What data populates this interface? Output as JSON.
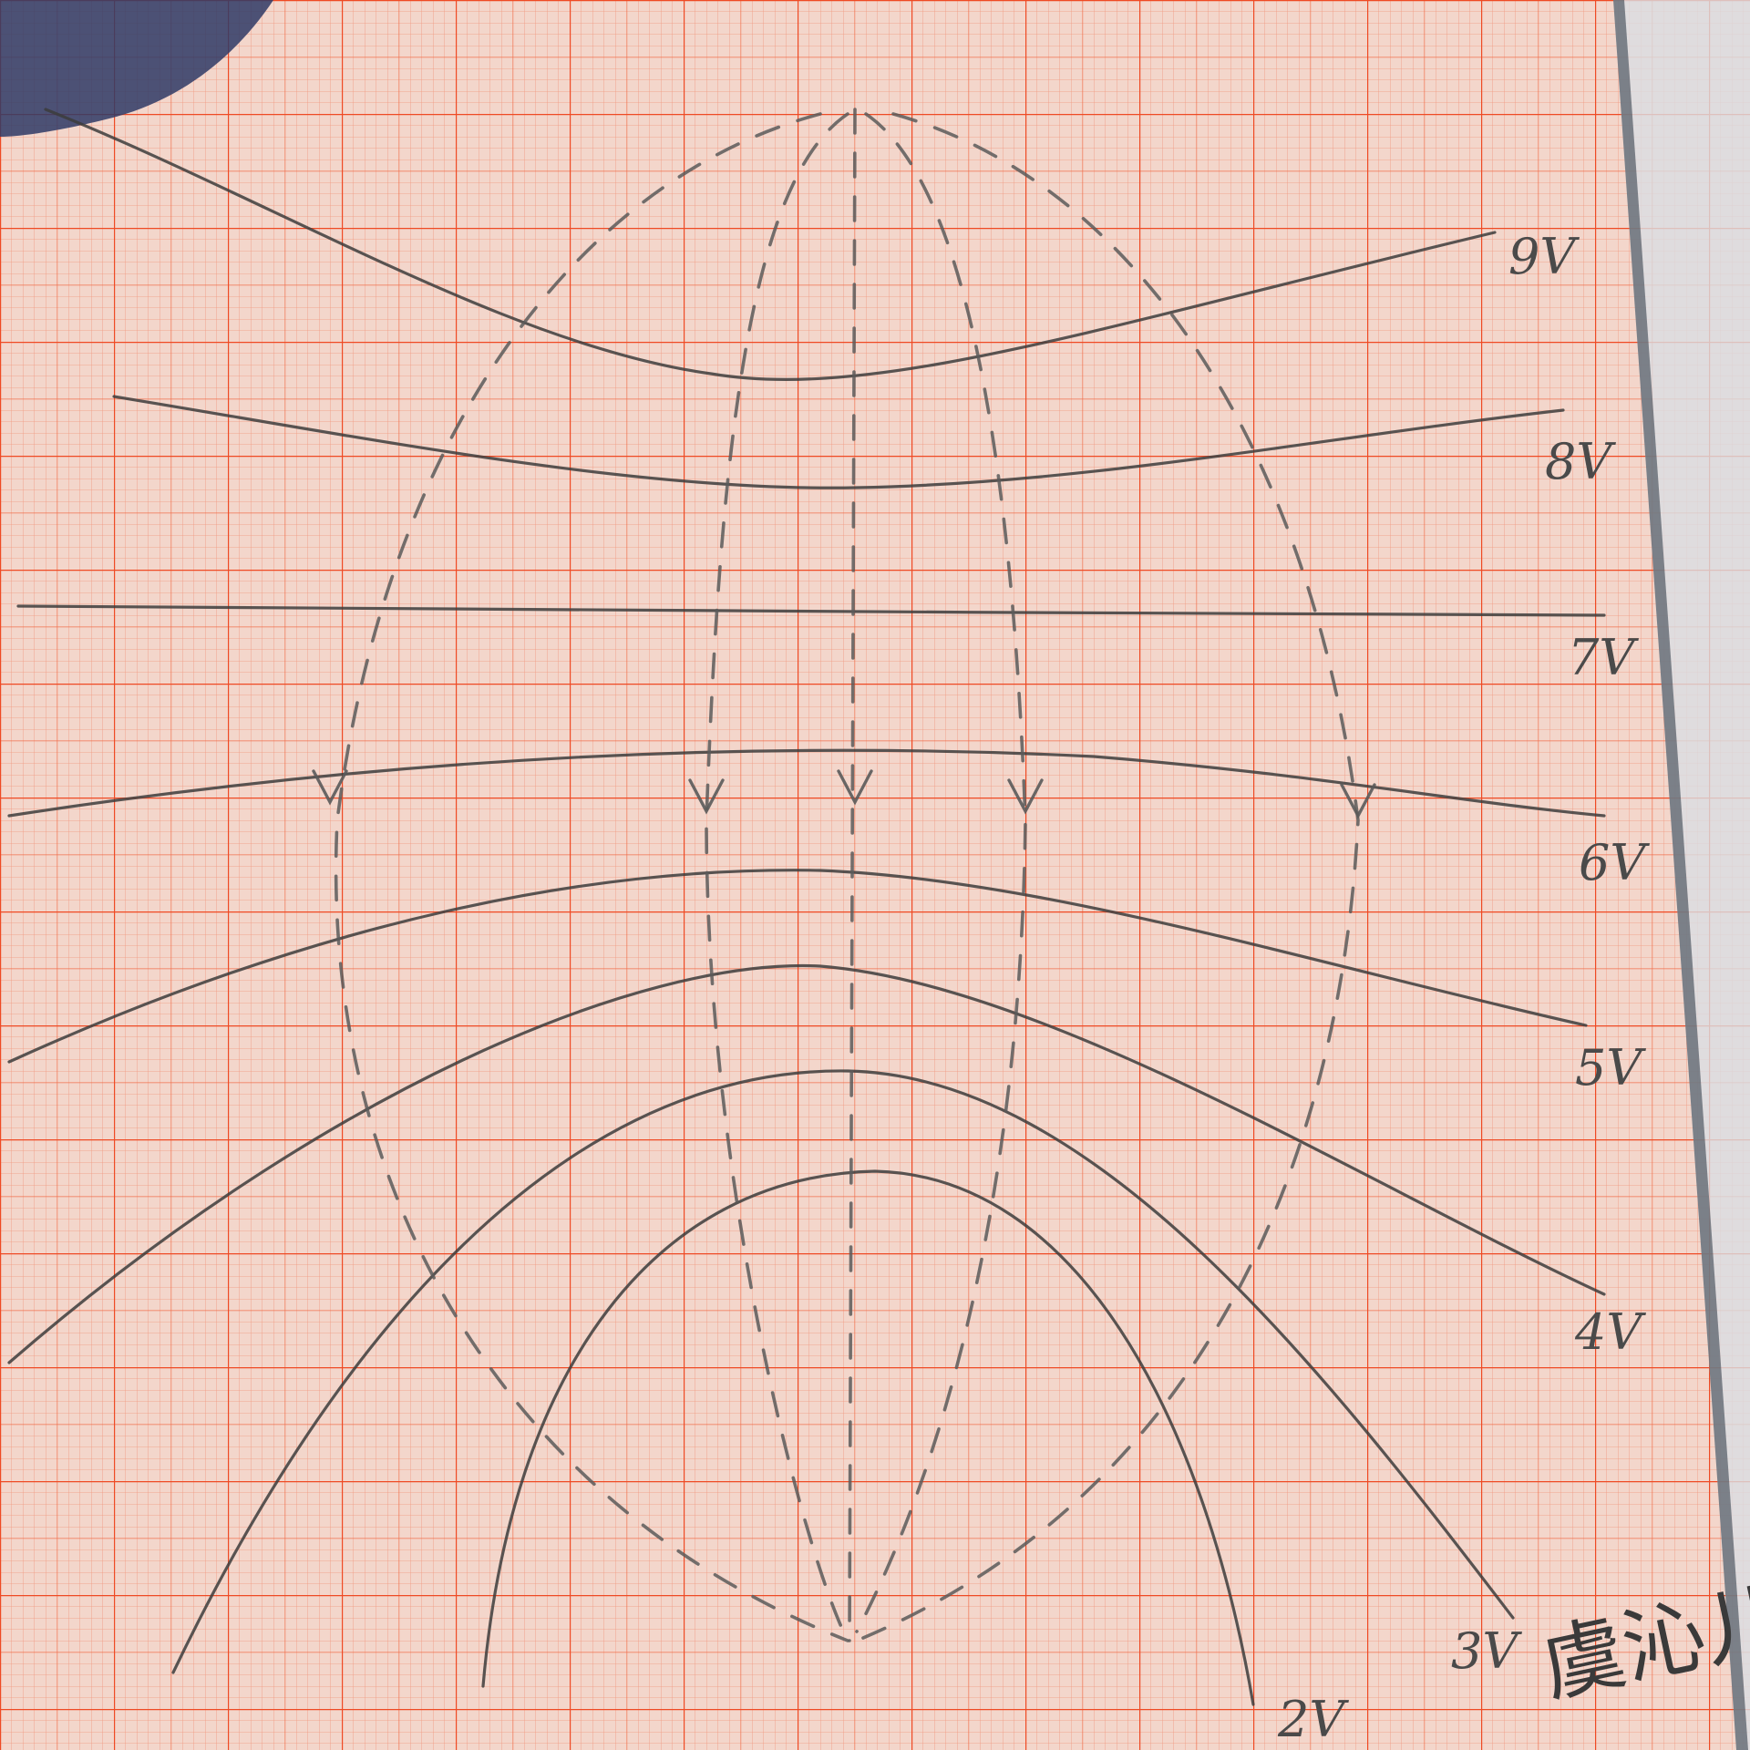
{
  "sheet": {
    "paper_color": "#f3d6cb",
    "grid_color": "#f0603a",
    "pencil_color": "#3c3c3c",
    "dashed_color": "#5a5a5a"
  },
  "equipotential_labels": [
    "9V",
    "8V",
    "7V",
    "6V",
    "5V",
    "4V",
    "3V",
    "2V"
  ],
  "signature": "虞沁儿",
  "field_line_marks": [
    "arrow-down",
    "arrow-down",
    "arrow-down",
    "arrow-down",
    "arrow-down"
  ],
  "objects": [
    "ruler-edge",
    "cloth-corner"
  ]
}
